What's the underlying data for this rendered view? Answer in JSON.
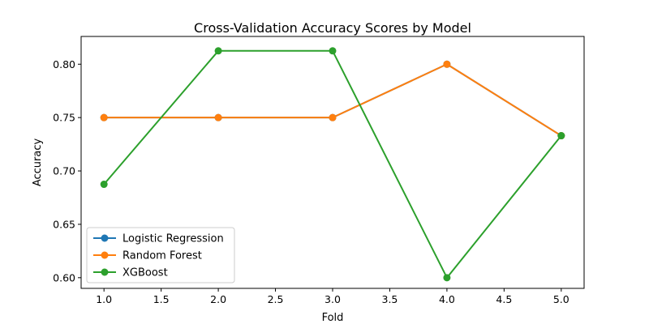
{
  "chart_data": {
    "type": "line",
    "title": "Cross-Validation Accuracy Scores by Model",
    "xlabel": "Fold",
    "ylabel": "Accuracy",
    "xlim": [
      0.8,
      5.2
    ],
    "ylim": [
      0.59,
      0.826
    ],
    "x_ticks": [
      1.0,
      1.5,
      2.0,
      2.5,
      3.0,
      3.5,
      4.0,
      4.5,
      5.0
    ],
    "x_tick_labels": [
      "1.0",
      "1.5",
      "2.0",
      "2.5",
      "3.0",
      "3.5",
      "4.0",
      "4.5",
      "5.0"
    ],
    "y_ticks": [
      0.6,
      0.65,
      0.7,
      0.75,
      0.8
    ],
    "y_tick_labels": [
      "0.60",
      "0.65",
      "0.70",
      "0.75",
      "0.80"
    ],
    "grid": false,
    "legend_position": "lower-left",
    "x": [
      1,
      2,
      3,
      4,
      5
    ],
    "series": [
      {
        "name": "Logistic Regression",
        "color": "#1f77b4",
        "values": [
          0.75,
          0.75,
          0.75,
          0.8,
          0.733
        ]
      },
      {
        "name": "Random Forest",
        "color": "#ff7f0e",
        "values": [
          0.75,
          0.75,
          0.75,
          0.8,
          0.733
        ]
      },
      {
        "name": "XGBoost",
        "color": "#2ca02c",
        "values": [
          0.6875,
          0.8125,
          0.8125,
          0.6,
          0.733
        ]
      }
    ]
  }
}
